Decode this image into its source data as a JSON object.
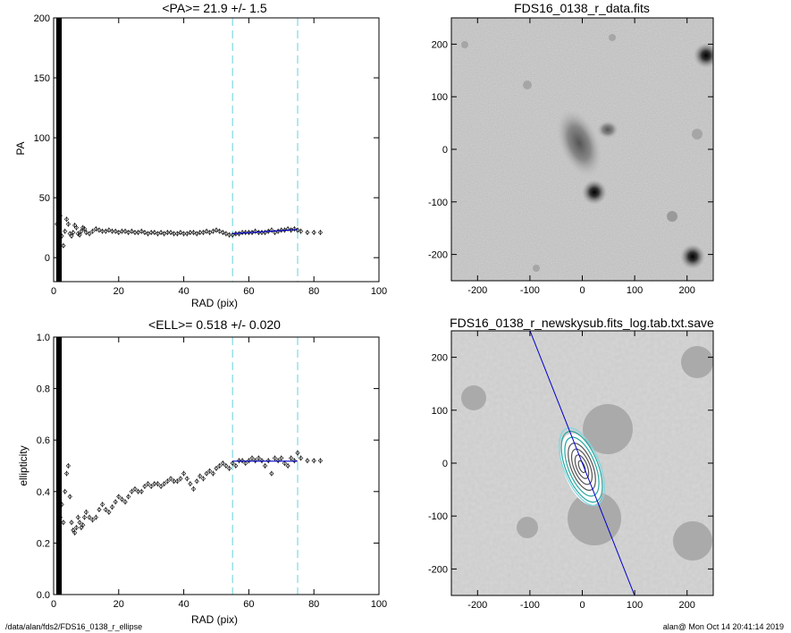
{
  "chart_data": [
    {
      "type": "scatter",
      "title": "<PA>=  21.9 +/-   1.5",
      "xlabel": "RAD (pix)",
      "ylabel": "PA",
      "xlim": [
        0,
        100
      ],
      "ylim": [
        -20,
        200
      ],
      "xticks": [
        "0",
        "20",
        "40",
        "60",
        "80",
        "100"
      ],
      "yticks": [
        "0",
        "50",
        "100",
        "150",
        "200"
      ],
      "vlines": [
        55,
        75
      ],
      "fit": {
        "x": [
          55,
          75
        ],
        "y": [
          20,
          23.5
        ],
        "color": "#0000cc"
      },
      "series": [
        {
          "values": [
            [
              1.0,
              28
            ],
            [
              1.5,
              45
            ],
            [
              2.0,
              35
            ],
            [
              2.5,
              18
            ],
            [
              3.0,
              10
            ],
            [
              3.5,
              22
            ],
            [
              4.0,
              32
            ],
            [
              4.5,
              28
            ],
            [
              5.0,
              20
            ],
            [
              5.5,
              18
            ],
            [
              6.0,
              21
            ],
            [
              6.5,
              27
            ],
            [
              7.0,
              25
            ],
            [
              7.5,
              20
            ],
            [
              8.0,
              19
            ],
            [
              8.5,
              22
            ],
            [
              9.0,
              25
            ],
            [
              9.5,
              24
            ],
            [
              10,
              21
            ],
            [
              11,
              20
            ],
            [
              12,
              22
            ],
            [
              13,
              24
            ],
            [
              14,
              23
            ],
            [
              15,
              22
            ],
            [
              16,
              22
            ],
            [
              17,
              23
            ],
            [
              18,
              22
            ],
            [
              19,
              22
            ],
            [
              20,
              21
            ],
            [
              21,
              22
            ],
            [
              22,
              22
            ],
            [
              23,
              21
            ],
            [
              24,
              22
            ],
            [
              25,
              21
            ],
            [
              26,
              21
            ],
            [
              27,
              22
            ],
            [
              28,
              21
            ],
            [
              29,
              20
            ],
            [
              30,
              21
            ],
            [
              31,
              21
            ],
            [
              32,
              20
            ],
            [
              33,
              21
            ],
            [
              34,
              20
            ],
            [
              35,
              21
            ],
            [
              36,
              21
            ],
            [
              37,
              20
            ],
            [
              38,
              20
            ],
            [
              39,
              21
            ],
            [
              40,
              20
            ],
            [
              41,
              20
            ],
            [
              42,
              21
            ],
            [
              43,
              21
            ],
            [
              44,
              20
            ],
            [
              45,
              21
            ],
            [
              46,
              21
            ],
            [
              47,
              22
            ],
            [
              48,
              21
            ],
            [
              49,
              22
            ],
            [
              50,
              23
            ],
            [
              51,
              22
            ],
            [
              52,
              21
            ],
            [
              53,
              20
            ],
            [
              54,
              19
            ],
            [
              55,
              19
            ],
            [
              56,
              20
            ],
            [
              57,
              20
            ],
            [
              58,
              21
            ],
            [
              59,
              21
            ],
            [
              60,
              21
            ],
            [
              61,
              21
            ],
            [
              62,
              22
            ],
            [
              63,
              21
            ],
            [
              64,
              21
            ],
            [
              65,
              21
            ],
            [
              66,
              22
            ],
            [
              67,
              23
            ],
            [
              68,
              21
            ],
            [
              69,
              22
            ],
            [
              70,
              23
            ],
            [
              71,
              23
            ],
            [
              72,
              24
            ],
            [
              73,
              23
            ],
            [
              74,
              24
            ],
            [
              75,
              23
            ],
            [
              76,
              22
            ],
            [
              78,
              21
            ],
            [
              80,
              21
            ],
            [
              82,
              21
            ]
          ]
        }
      ]
    },
    {
      "type": "scatter",
      "title": "<ELL>= 0.518 +/-  0.020",
      "xlabel": "RAD (pix)",
      "ylabel": "ellipticity",
      "xlim": [
        0,
        100
      ],
      "ylim": [
        0,
        1
      ],
      "xticks": [
        "0",
        "20",
        "40",
        "60",
        "80",
        "100"
      ],
      "yticks": [
        "0.0",
        "0.2",
        "0.4",
        "0.6",
        "0.8",
        "1.0"
      ],
      "vlines": [
        55,
        75
      ],
      "fit": {
        "x": [
          55,
          75
        ],
        "y": [
          0.518,
          0.518
        ],
        "color": "#0000cc"
      },
      "series": [
        {
          "values": [
            [
              1.5,
              0.45
            ],
            [
              2.0,
              0.3
            ],
            [
              2.5,
              0.35
            ],
            [
              3.0,
              0.28
            ],
            [
              3.5,
              0.4
            ],
            [
              4.0,
              0.47
            ],
            [
              4.5,
              0.5
            ],
            [
              5.0,
              0.38
            ],
            [
              5.5,
              0.28
            ],
            [
              6.0,
              0.25
            ],
            [
              6.5,
              0.24
            ],
            [
              7.0,
              0.26
            ],
            [
              7.5,
              0.3
            ],
            [
              8.0,
              0.28
            ],
            [
              8.5,
              0.26
            ],
            [
              9.0,
              0.27
            ],
            [
              9.5,
              0.3
            ],
            [
              10,
              0.32
            ],
            [
              11,
              0.3
            ],
            [
              12,
              0.29
            ],
            [
              13,
              0.3
            ],
            [
              14,
              0.33
            ],
            [
              15,
              0.35
            ],
            [
              16,
              0.33
            ],
            [
              17,
              0.32
            ],
            [
              18,
              0.34
            ],
            [
              19,
              0.36
            ],
            [
              20,
              0.38
            ],
            [
              21,
              0.37
            ],
            [
              22,
              0.36
            ],
            [
              23,
              0.38
            ],
            [
              24,
              0.4
            ],
            [
              25,
              0.41
            ],
            [
              26,
              0.4
            ],
            [
              27,
              0.4
            ],
            [
              28,
              0.42
            ],
            [
              29,
              0.43
            ],
            [
              30,
              0.42
            ],
            [
              31,
              0.43
            ],
            [
              32,
              0.43
            ],
            [
              33,
              0.42
            ],
            [
              34,
              0.43
            ],
            [
              35,
              0.44
            ],
            [
              36,
              0.45
            ],
            [
              37,
              0.44
            ],
            [
              38,
              0.44
            ],
            [
              39,
              0.45
            ],
            [
              40,
              0.47
            ],
            [
              41,
              0.45
            ],
            [
              42,
              0.43
            ],
            [
              43,
              0.41
            ],
            [
              44,
              0.44
            ],
            [
              45,
              0.46
            ],
            [
              46,
              0.45
            ],
            [
              47,
              0.47
            ],
            [
              48,
              0.48
            ],
            [
              49,
              0.47
            ],
            [
              50,
              0.49
            ],
            [
              51,
              0.5
            ],
            [
              52,
              0.51
            ],
            [
              53,
              0.5
            ],
            [
              54,
              0.49
            ],
            [
              55,
              0.51
            ],
            [
              56,
              0.5
            ],
            [
              57,
              0.52
            ],
            [
              58,
              0.52
            ],
            [
              59,
              0.51
            ],
            [
              60,
              0.52
            ],
            [
              61,
              0.53
            ],
            [
              62,
              0.52
            ],
            [
              63,
              0.53
            ],
            [
              64,
              0.52
            ],
            [
              65,
              0.5
            ],
            [
              66,
              0.52
            ],
            [
              67,
              0.47
            ],
            [
              68,
              0.53
            ],
            [
              69,
              0.52
            ],
            [
              70,
              0.53
            ],
            [
              71,
              0.51
            ],
            [
              72,
              0.5
            ],
            [
              73,
              0.53
            ],
            [
              74,
              0.52
            ],
            [
              75,
              0.55
            ],
            [
              76,
              0.53
            ],
            [
              78,
              0.52
            ],
            [
              80,
              0.52
            ],
            [
              82,
              0.52
            ]
          ]
        }
      ]
    },
    {
      "type": "heatmap",
      "title": "FDS16_0138_r_data.fits",
      "xlim": [
        -250,
        250
      ],
      "ylim": [
        -250,
        250
      ],
      "xticks": [
        "-200",
        "-100",
        "0",
        "100",
        "200"
      ],
      "yticks": [
        "-200",
        "-100",
        "0",
        "100",
        "200"
      ]
    },
    {
      "type": "heatmap",
      "title": "FDS16_0138_r_newskysub.fits_log.tab.txt.save",
      "xlim": [
        -250,
        250
      ],
      "ylim": [
        -250,
        250
      ],
      "xticks": [
        "-200",
        "-100",
        "0",
        "100",
        "200"
      ],
      "yticks": [
        "-200",
        "-100",
        "0",
        "100",
        "200"
      ]
    }
  ],
  "footer": {
    "left": "/data/alan/fds2/FDS16_0138_r_ellipse",
    "right": "alan@  Mon Oct 14 20:41:14 2019"
  },
  "colors": {
    "vline": "#7fd8e0",
    "fit": "#0000cc",
    "contour": "#2aa7a0"
  }
}
